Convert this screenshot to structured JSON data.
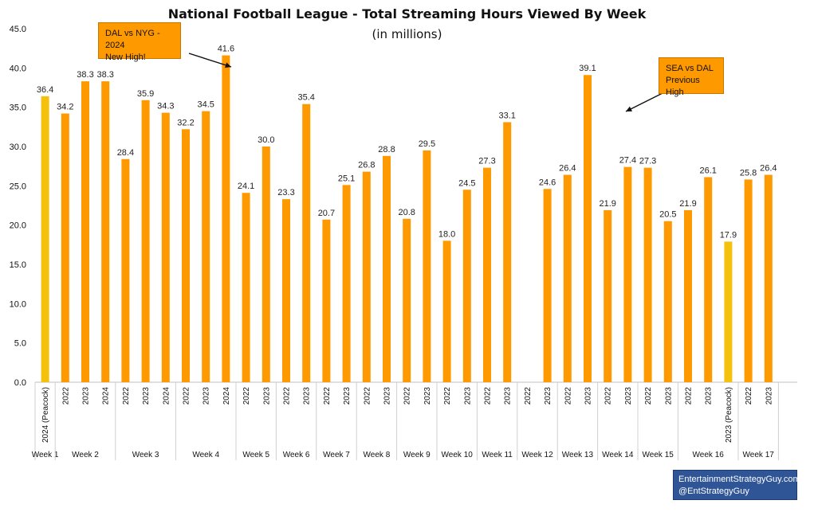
{
  "chart_data": {
    "type": "bar",
    "title": "National Football League - Total Streaming Hours Viewed By Week",
    "subtitle": "(in millions)",
    "ylim": [
      0,
      45
    ],
    "yticks": [
      "0.0",
      "5.0",
      "10.0",
      "15.0",
      "20.0",
      "25.0",
      "30.0",
      "35.0",
      "40.0",
      "45.0"
    ],
    "grid": false,
    "highlight_color": "#f4c20d",
    "bar_color": "#ff9900",
    "weeks": [
      {
        "label": "Week 1",
        "bars": [
          {
            "sub": "2024 (Peacock)",
            "value": 36.4,
            "highlight": true
          }
        ]
      },
      {
        "label": "Week 2",
        "bars": [
          {
            "sub": "2022",
            "value": 34.2
          },
          {
            "sub": "2023",
            "value": 38.3
          },
          {
            "sub": "2024",
            "value": 38.3
          }
        ]
      },
      {
        "label": "Week 3",
        "bars": [
          {
            "sub": "2022",
            "value": 28.4
          },
          {
            "sub": "2023",
            "value": 35.9
          },
          {
            "sub": "2024",
            "value": 34.3
          }
        ]
      },
      {
        "label": "Week 4",
        "bars": [
          {
            "sub": "2022",
            "value": 32.2
          },
          {
            "sub": "2023",
            "value": 34.5
          },
          {
            "sub": "2024",
            "value": 41.6
          }
        ]
      },
      {
        "label": "Week 5",
        "bars": [
          {
            "sub": "2022",
            "value": 24.1
          },
          {
            "sub": "2023",
            "value": 30.0
          }
        ]
      },
      {
        "label": "Week 6",
        "bars": [
          {
            "sub": "2022",
            "value": 23.3
          },
          {
            "sub": "2023",
            "value": 35.4
          }
        ]
      },
      {
        "label": "Week 7",
        "bars": [
          {
            "sub": "2022",
            "value": 20.7
          },
          {
            "sub": "2023",
            "value": 25.1
          }
        ]
      },
      {
        "label": "Week 8",
        "bars": [
          {
            "sub": "2022",
            "value": 26.8
          },
          {
            "sub": "2023",
            "value": 28.8
          }
        ]
      },
      {
        "label": "Week 9",
        "bars": [
          {
            "sub": "2022",
            "value": 20.8
          },
          {
            "sub": "2023",
            "value": 29.5
          }
        ]
      },
      {
        "label": "Week 10",
        "bars": [
          {
            "sub": "2022",
            "value": 18.0
          },
          {
            "sub": "2023",
            "value": 24.5
          }
        ]
      },
      {
        "label": "Week 11",
        "bars": [
          {
            "sub": "2022",
            "value": 27.3
          },
          {
            "sub": "2023",
            "value": 33.1
          }
        ]
      },
      {
        "label": "Week 12",
        "bars": [
          {
            "sub": "2022",
            "value": null
          },
          {
            "sub": "2023",
            "value": 24.6
          }
        ]
      },
      {
        "label": "Week 13",
        "bars": [
          {
            "sub": "2022",
            "value": 26.4
          },
          {
            "sub": "2023",
            "value": 39.1
          }
        ]
      },
      {
        "label": "Week 14",
        "bars": [
          {
            "sub": "2022",
            "value": 21.9
          },
          {
            "sub": "2023",
            "value": 27.4
          }
        ]
      },
      {
        "label": "Week 15",
        "bars": [
          {
            "sub": "2022",
            "value": 27.3
          },
          {
            "sub": "2023",
            "value": 20.5
          }
        ]
      },
      {
        "label": "Week 16",
        "bars": [
          {
            "sub": "2022",
            "value": 21.9
          },
          {
            "sub": "2023",
            "value": 26.1
          },
          {
            "sub": "2023 (Peacock)",
            "value": 17.9,
            "highlight": true
          }
        ]
      },
      {
        "label": "Week 17",
        "bars": [
          {
            "sub": "2022",
            "value": 25.8
          },
          {
            "sub": "2023",
            "value": 26.4
          }
        ]
      }
    ],
    "annotations": [
      {
        "lines": [
          "DAL vs NYG - 2024",
          "New High!"
        ]
      },
      {
        "lines": [
          "SEA vs DAL",
          "Previous High"
        ]
      }
    ]
  },
  "credit": {
    "lines": [
      "EntertainmentStrategyGuy.com",
      "@EntStrategyGuy"
    ],
    "background": "#2f5597"
  }
}
